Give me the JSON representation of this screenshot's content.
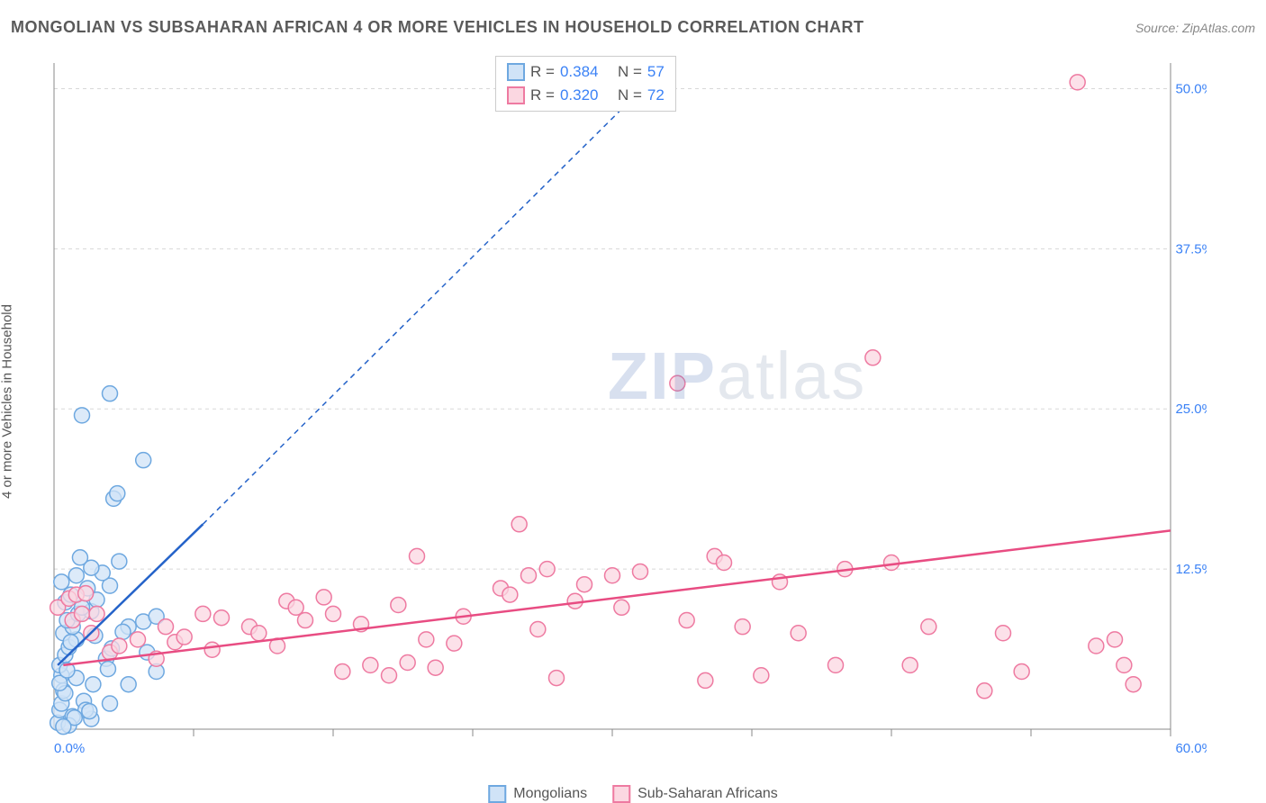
{
  "title": "MONGOLIAN VS SUBSAHARAN AFRICAN 4 OR MORE VEHICLES IN HOUSEHOLD CORRELATION CHART",
  "source": "Source: ZipAtlas.com",
  "y_axis_label": "4 or more Vehicles in Household",
  "watermark_zip": "ZIP",
  "watermark_atlas": "atlas",
  "chart": {
    "type": "scatter",
    "xlim": [
      0,
      60
    ],
    "ylim": [
      0,
      52
    ],
    "x_ticks": [
      0
    ],
    "x_tick_labels": [
      "0.0%"
    ],
    "x_minor_ticks": [
      7.5,
      15,
      22.5,
      30,
      37.5,
      45,
      52.5,
      60
    ],
    "x_end_label": "60.0%",
    "y_ticks": [
      12.5,
      25.0,
      37.5,
      50.0
    ],
    "y_tick_labels": [
      "12.5%",
      "25.0%",
      "37.5%",
      "50.0%"
    ],
    "grid_color": "#d8d8d8",
    "axis_color": "#888888",
    "background_color": "#ffffff",
    "marker_radius": 8.5,
    "marker_stroke_width": 1.5,
    "trend_line_width": 2.5,
    "trend_dash": "6,5",
    "series": [
      {
        "name": "Mongolians",
        "label": "Mongolians",
        "fill": "#d0e3f7",
        "stroke": "#6ea8e0",
        "line_color": "#2563c9",
        "R": 0.384,
        "N": 57,
        "trend_solid": {
          "x1": 0.2,
          "y1": 5,
          "x2": 8,
          "y2": 16
        },
        "trend_dash": {
          "x1": 8,
          "y1": 16,
          "x2": 33,
          "y2": 52
        },
        "points": [
          [
            0.2,
            0.5
          ],
          [
            0.3,
            1.5
          ],
          [
            0.4,
            2.0
          ],
          [
            0.5,
            3.0
          ],
          [
            0.4,
            4.2
          ],
          [
            0.3,
            5.0
          ],
          [
            0.6,
            5.8
          ],
          [
            0.8,
            6.4
          ],
          [
            1.2,
            7.0
          ],
          [
            0.5,
            7.5
          ],
          [
            1.0,
            8.0
          ],
          [
            0.7,
            8.5
          ],
          [
            1.3,
            9.0
          ],
          [
            2.0,
            9.2
          ],
          [
            1.5,
            9.5
          ],
          [
            0.6,
            9.9
          ],
          [
            2.3,
            10.1
          ],
          [
            0.9,
            10.5
          ],
          [
            1.8,
            11.0
          ],
          [
            3.0,
            11.2
          ],
          [
            0.4,
            11.5
          ],
          [
            1.2,
            12.0
          ],
          [
            2.6,
            12.2
          ],
          [
            2.0,
            12.6
          ],
          [
            3.5,
            13.1
          ],
          [
            1.4,
            13.4
          ],
          [
            1.0,
            1.0
          ],
          [
            1.6,
            2.2
          ],
          [
            2.1,
            3.5
          ],
          [
            1.2,
            4.0
          ],
          [
            2.8,
            5.5
          ],
          [
            3.1,
            6.3
          ],
          [
            0.9,
            6.8
          ],
          [
            2.2,
            7.3
          ],
          [
            4.0,
            8.0
          ],
          [
            4.8,
            8.4
          ],
          [
            5.5,
            8.8
          ],
          [
            3.7,
            7.6
          ],
          [
            2.9,
            4.7
          ],
          [
            3.2,
            18.0
          ],
          [
            3.4,
            18.4
          ],
          [
            4.8,
            21.0
          ],
          [
            1.5,
            24.5
          ],
          [
            3.0,
            26.2
          ],
          [
            2.0,
            0.8
          ],
          [
            3.0,
            2.0
          ],
          [
            4.0,
            3.5
          ],
          [
            5.0,
            6.0
          ],
          [
            5.5,
            4.5
          ],
          [
            1.7,
            1.5
          ],
          [
            0.8,
            0.3
          ],
          [
            1.1,
            0.9
          ],
          [
            1.9,
            1.4
          ],
          [
            0.6,
            2.8
          ],
          [
            0.3,
            3.6
          ],
          [
            0.7,
            4.6
          ],
          [
            0.5,
            0.2
          ]
        ]
      },
      {
        "name": "Sub-Saharan Africans",
        "label": "Sub-Saharan Africans",
        "fill": "#fbd7e1",
        "stroke": "#ee7aa1",
        "line_color": "#e84c82",
        "R": 0.32,
        "N": 72,
        "trend_solid": {
          "x1": 0.5,
          "y1": 5,
          "x2": 60,
          "y2": 15.5
        },
        "trend_dash": null,
        "points": [
          [
            0.2,
            9.5
          ],
          [
            1.0,
            8.5
          ],
          [
            1.5,
            9.0
          ],
          [
            2.0,
            7.5
          ],
          [
            3.0,
            6.0
          ],
          [
            3.5,
            6.5
          ],
          [
            4.5,
            7.0
          ],
          [
            5.5,
            5.5
          ],
          [
            6.0,
            8.0
          ],
          [
            6.5,
            6.8
          ],
          [
            7.0,
            7.2
          ],
          [
            8.0,
            9.0
          ],
          [
            8.5,
            6.2
          ],
          [
            9.0,
            8.7
          ],
          [
            10.5,
            8.0
          ],
          [
            11.0,
            7.5
          ],
          [
            12.0,
            6.5
          ],
          [
            12.5,
            10.0
          ],
          [
            13.0,
            9.5
          ],
          [
            13.5,
            8.5
          ],
          [
            14.5,
            10.3
          ],
          [
            15.0,
            9.0
          ],
          [
            15.5,
            4.5
          ],
          [
            16.5,
            8.2
          ],
          [
            17.0,
            5.0
          ],
          [
            18.0,
            4.2
          ],
          [
            18.5,
            9.7
          ],
          [
            19.0,
            5.2
          ],
          [
            19.5,
            13.5
          ],
          [
            20.0,
            7.0
          ],
          [
            20.5,
            4.8
          ],
          [
            21.5,
            6.7
          ],
          [
            22.0,
            8.8
          ],
          [
            24.0,
            11.0
          ],
          [
            24.5,
            10.5
          ],
          [
            25.0,
            16.0
          ],
          [
            25.5,
            12.0
          ],
          [
            26.0,
            7.8
          ],
          [
            26.5,
            12.5
          ],
          [
            27.0,
            4.0
          ],
          [
            28.0,
            10.0
          ],
          [
            28.5,
            11.3
          ],
          [
            30.0,
            12.0
          ],
          [
            30.5,
            9.5
          ],
          [
            31.5,
            12.3
          ],
          [
            33.5,
            27.0
          ],
          [
            34.0,
            8.5
          ],
          [
            35.0,
            3.8
          ],
          [
            35.5,
            13.5
          ],
          [
            36.0,
            13.0
          ],
          [
            37.0,
            8.0
          ],
          [
            38.0,
            4.2
          ],
          [
            39.0,
            11.5
          ],
          [
            40.0,
            7.5
          ],
          [
            42.0,
            5.0
          ],
          [
            42.5,
            12.5
          ],
          [
            44.0,
            29.0
          ],
          [
            45.0,
            13.0
          ],
          [
            46.0,
            5.0
          ],
          [
            47.0,
            8.0
          ],
          [
            50.0,
            3.0
          ],
          [
            51.0,
            7.5
          ],
          [
            52.0,
            4.5
          ],
          [
            55.0,
            50.5
          ],
          [
            56.0,
            6.5
          ],
          [
            57.0,
            7.0
          ],
          [
            57.5,
            5.0
          ],
          [
            58.0,
            3.5
          ],
          [
            0.8,
            10.2
          ],
          [
            1.2,
            10.5
          ],
          [
            1.7,
            10.6
          ],
          [
            2.3,
            9.0
          ]
        ]
      }
    ]
  },
  "legend_top": [
    {
      "swatch_bg": "#d0e3f7",
      "swatch_border": "#6ea8e0",
      "r_label": "R =",
      "r_val": "0.384",
      "n_label": "N =",
      "n_val": "57"
    },
    {
      "swatch_bg": "#fbd7e1",
      "swatch_border": "#ee7aa1",
      "r_label": "R =",
      "r_val": "0.320",
      "n_label": "N =",
      "n_val": "72"
    }
  ],
  "legend_bottom": [
    {
      "swatch_bg": "#d0e3f7",
      "swatch_border": "#6ea8e0",
      "label": "Mongolians"
    },
    {
      "swatch_bg": "#fbd7e1",
      "swatch_border": "#ee7aa1",
      "label": "Sub-Saharan Africans"
    }
  ]
}
